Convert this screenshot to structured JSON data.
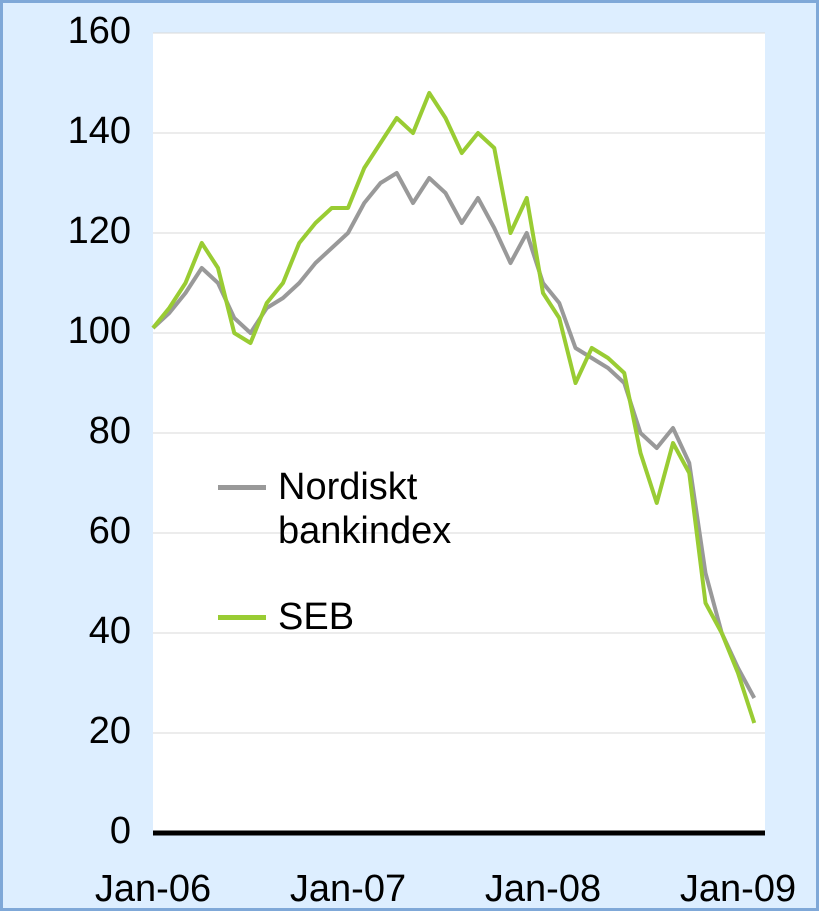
{
  "chart_data": {
    "type": "line",
    "categories": [
      "Jan-06",
      null,
      null,
      null,
      null,
      null,
      null,
      null,
      null,
      null,
      null,
      null,
      "Jan-07",
      null,
      null,
      null,
      null,
      null,
      null,
      null,
      null,
      null,
      null,
      null,
      "Jan-08",
      null,
      null,
      null,
      null,
      null,
      null,
      null,
      null,
      null,
      null,
      null,
      "Jan-09",
      null
    ],
    "series": [
      {
        "name": "Nordiskt bankindex",
        "color": "#999999",
        "values": [
          101,
          104,
          108,
          113,
          110,
          103,
          100,
          105,
          107,
          110,
          114,
          117,
          120,
          126,
          130,
          132,
          126,
          131,
          128,
          122,
          127,
          121,
          114,
          120,
          110,
          106,
          97,
          95,
          93,
          90,
          80,
          77,
          81,
          74,
          52,
          40,
          33,
          27
        ]
      },
      {
        "name": "SEB",
        "color": "#99cc33",
        "values": [
          101,
          105,
          110,
          118,
          113,
          100,
          98,
          106,
          110,
          118,
          122,
          125,
          125,
          133,
          138,
          143,
          140,
          148,
          143,
          136,
          140,
          137,
          120,
          127,
          108,
          103,
          90,
          97,
          95,
          92,
          76,
          66,
          78,
          72,
          46,
          40,
          32,
          22
        ]
      }
    ],
    "ylim": [
      0,
      160
    ],
    "yticks": [
      0,
      20,
      40,
      60,
      80,
      100,
      120,
      140,
      160
    ],
    "grid": true
  }
}
